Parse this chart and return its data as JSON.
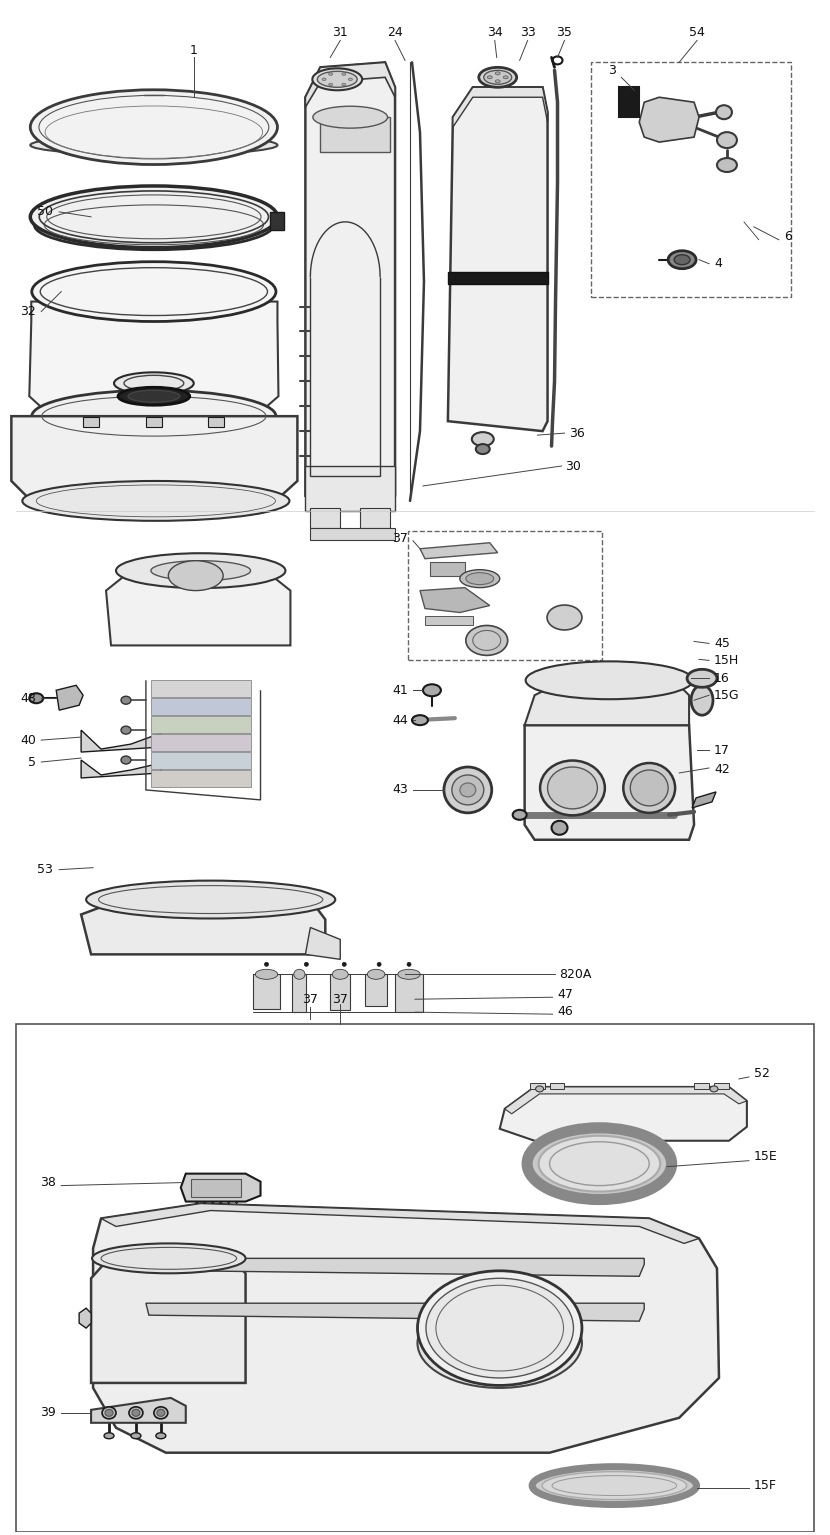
{
  "bg_color": "#ffffff",
  "lc": "#3a3a3a",
  "dc": "#1a1a1a",
  "lg": "#999999",
  "fig_width": 8.3,
  "fig_height": 15.35,
  "dpi": 100,
  "labels": {
    "sec1": {
      "1": [
        0.193,
        0.968,
        "center"
      ],
      "50": [
        0.052,
        0.887,
        "right"
      ],
      "32": [
        0.052,
        0.842,
        "right"
      ],
      "31": [
        0.4,
        0.977,
        "center"
      ],
      "24": [
        0.458,
        0.977,
        "center"
      ],
      "34": [
        0.57,
        0.977,
        "center"
      ],
      "33": [
        0.613,
        0.977,
        "center"
      ],
      "35": [
        0.658,
        0.977,
        "center"
      ],
      "54": [
        0.832,
        0.977,
        "center"
      ],
      "3": [
        0.742,
        0.956,
        "right"
      ],
      "6": [
        0.832,
        0.882,
        "left"
      ],
      "4": [
        0.832,
        0.847,
        "left"
      ],
      "36": [
        0.658,
        0.793,
        "left"
      ],
      "30": [
        0.648,
        0.768,
        "left"
      ]
    },
    "sec2": {
      "48": [
        0.042,
        0.552,
        "right"
      ],
      "40": [
        0.042,
        0.487,
        "right"
      ],
      "5": [
        0.042,
        0.457,
        "right"
      ],
      "53": [
        0.078,
        0.406,
        "right"
      ],
      "37b": [
        0.488,
        0.637,
        "left"
      ],
      "41": [
        0.416,
        0.515,
        "right"
      ],
      "44": [
        0.416,
        0.487,
        "right"
      ],
      "43": [
        0.416,
        0.416,
        "right"
      ],
      "820A": [
        0.666,
        0.376,
        "left"
      ],
      "47": [
        0.648,
        0.36,
        "left"
      ],
      "46": [
        0.648,
        0.344,
        "left"
      ],
      "37c": [
        0.315,
        0.344,
        "center"
      ],
      "45": [
        0.832,
        0.528,
        "left"
      ],
      "15H": [
        0.832,
        0.511,
        "left"
      ],
      "16": [
        0.832,
        0.494,
        "left"
      ],
      "15G": [
        0.832,
        0.477,
        "left"
      ],
      "17": [
        0.832,
        0.434,
        "left"
      ],
      "42": [
        0.832,
        0.418,
        "left"
      ]
    },
    "sec3": {
      "37d": [
        0.374,
        0.317,
        "center"
      ],
      "52": [
        0.832,
        0.284,
        "left"
      ],
      "15E": [
        0.832,
        0.233,
        "left"
      ],
      "38": [
        0.068,
        0.226,
        "right"
      ],
      "39": [
        0.068,
        0.113,
        "right"
      ],
      "15F": [
        0.832,
        0.047,
        "left"
      ]
    }
  }
}
